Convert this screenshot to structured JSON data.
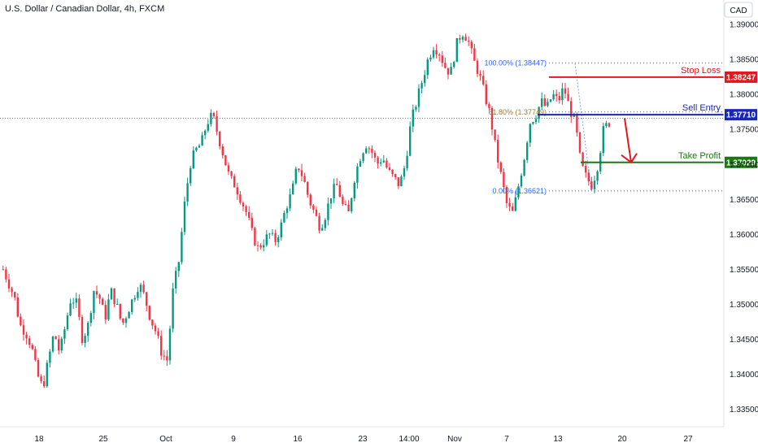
{
  "chart_data": {
    "type": "candlestick",
    "title": "U.S. Dollar / Canadian Dollar, 4h, FXCM",
    "currency_button": "CAD",
    "y_ticks": [
      "1.39000",
      "1.38500",
      "1.38000",
      "1.37500",
      "1.37000",
      "1.36500",
      "1.36000",
      "1.35500",
      "1.35000",
      "1.34500",
      "1.34000",
      "1.33500"
    ],
    "ylim": [
      1.3325,
      1.3935
    ],
    "x_ticks": [
      "18",
      "25",
      "Oct",
      "9",
      "16",
      "23",
      "14:00",
      "Nov",
      "7",
      "13",
      "20",
      "27"
    ],
    "close_path": [
      1.355,
      1.353,
      1.351,
      1.347,
      1.346,
      1.344,
      1.34,
      1.338,
      1.342,
      1.346,
      1.343,
      1.347,
      1.351,
      1.35,
      1.345,
      1.347,
      1.352,
      1.351,
      1.348,
      1.352,
      1.35,
      1.347,
      1.349,
      1.351,
      1.353,
      1.351,
      1.348,
      1.346,
      1.343,
      1.342,
      1.352,
      1.356,
      1.364,
      1.37,
      1.372,
      1.373,
      1.376,
      1.377,
      1.374,
      1.371,
      1.368,
      1.367,
      1.365,
      1.363,
      1.36,
      1.358,
      1.359,
      1.36,
      1.359,
      1.361,
      1.364,
      1.366,
      1.37,
      1.368,
      1.365,
      1.363,
      1.361,
      1.363,
      1.366,
      1.367,
      1.364,
      1.363,
      1.368,
      1.371,
      1.373,
      1.372,
      1.37,
      1.371,
      1.369,
      1.368,
      1.367,
      1.37,
      1.376,
      1.379,
      1.382,
      1.385,
      1.387,
      1.386,
      1.384,
      1.383,
      1.387,
      1.389,
      1.388,
      1.385,
      1.383,
      1.38,
      1.377,
      1.372,
      1.368,
      1.364,
      1.363,
      1.367,
      1.371,
      1.376,
      1.377,
      1.379,
      1.378,
      1.38,
      1.379,
      1.381,
      1.378,
      1.376,
      1.37,
      1.368,
      1.367,
      1.37,
      1.375,
      1.376
    ],
    "candle_colors": {
      "up": "#089981",
      "down": "#f23645"
    },
    "last_price_line": 1.3766,
    "fibonacci": {
      "levels": [
        {
          "label": "100.00% (1.38447)",
          "price": 1.38447
        },
        {
          "label": "61.80% (1.37749)",
          "price": 1.37749
        },
        {
          "label": "0.00% (1.36621)",
          "price": 1.36621
        }
      ],
      "color": "#2962ff"
    },
    "trade_levels": [
      {
        "name": "Stop Loss",
        "price": 1.38247,
        "tag": "1.38247",
        "color": "#e5161d"
      },
      {
        "name": "Sell Entry",
        "price": 1.3771,
        "tag": "1.37710",
        "color": "#1b26b8"
      },
      {
        "name": "Take Profit",
        "price": 1.37029,
        "tag": "1.37029",
        "color": "#1a7a12"
      }
    ],
    "arrow_color": "#e5161d"
  }
}
